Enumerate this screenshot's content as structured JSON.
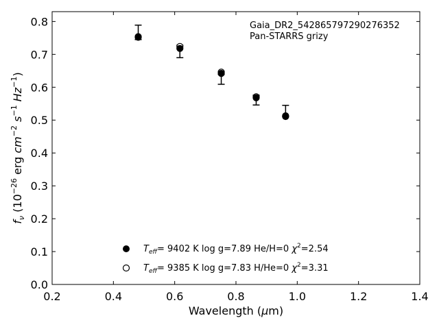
{
  "chart_data": {
    "type": "scatter",
    "annotation": [
      "Gaia_DR2_542865797290276352",
      "Pan-STARRS grizy"
    ],
    "xlabel": "Wavelength (μm)",
    "ylabel": "f_ν (10^-26 erg cm^-2 s^-1 Hz^-1)",
    "xlim": [
      0.2,
      1.4
    ],
    "ylim": [
      0.0,
      0.83
    ],
    "xticks": [
      "0.2",
      "0.4",
      "0.6",
      "0.8",
      "1.0",
      "1.2",
      "1.4"
    ],
    "yticks": [
      "0.0",
      "0.1",
      "0.2",
      "0.3",
      "0.4",
      "0.5",
      "0.6",
      "0.7",
      "0.8"
    ],
    "grid": false,
    "legend_position": "bottom-center",
    "observed": {
      "x": [
        0.481,
        0.617,
        0.752,
        0.866,
        0.962
      ],
      "y": [
        0.767,
        0.709,
        0.624,
        0.561,
        0.528
      ],
      "yerr_low": [
        0.022,
        0.019,
        0.015,
        0.015,
        0.017
      ],
      "yerr_high": [
        0.022,
        0.019,
        0.015,
        0.015,
        0.017
      ]
    },
    "series": [
      {
        "name": "T_eff= 9402 K log g=7.89 He/H=0 χ²=2.54",
        "marker": "filled-circle",
        "x": [
          0.481,
          0.617,
          0.752,
          0.866,
          0.962
        ],
        "y": [
          0.752,
          0.718,
          0.642,
          0.568,
          0.511
        ]
      },
      {
        "name": "T_eff= 9385 K log g=7.83 H/He=0 χ²=3.31",
        "marker": "open-circle",
        "x": [
          0.481,
          0.617,
          0.752,
          0.866,
          0.962
        ],
        "y": [
          0.754,
          0.724,
          0.646,
          0.571,
          0.513
        ]
      }
    ],
    "legend": [
      {
        "teff_value": "9402 K",
        "logg": "log g=7.89",
        "comp": "He/H=0",
        "chi2": "=2.54",
        "marker": "filled-circle"
      },
      {
        "teff_value": "9385 K",
        "logg": "log g=7.83",
        "comp": "H/He=0",
        "chi2": "=3.31",
        "marker": "open-circle"
      }
    ]
  }
}
